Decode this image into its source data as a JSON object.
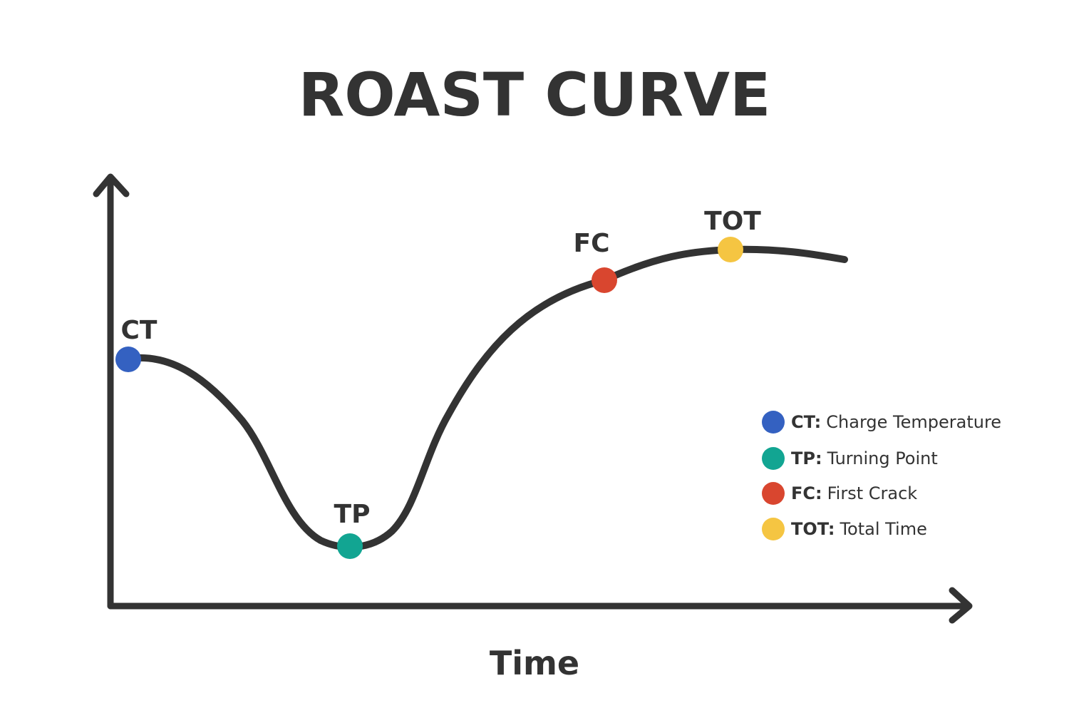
{
  "title": "ROAST CURVE",
  "x_axis_label": "Time",
  "points": [
    {
      "label": "CT",
      "color": "#3461c1"
    },
    {
      "label": "TP",
      "color": "#12a592"
    },
    {
      "label": "FC",
      "color": "#d9462f"
    },
    {
      "label": "TOT",
      "color": "#f5c542"
    }
  ],
  "legend": [
    {
      "abbr": "CT:",
      "text": "Charge Temperature"
    },
    {
      "abbr": "TP:",
      "text": "Turning Point"
    },
    {
      "abbr": "FC:",
      "text": "First Crack"
    },
    {
      "abbr": "TOT:",
      "text": "Total Time"
    }
  ]
}
